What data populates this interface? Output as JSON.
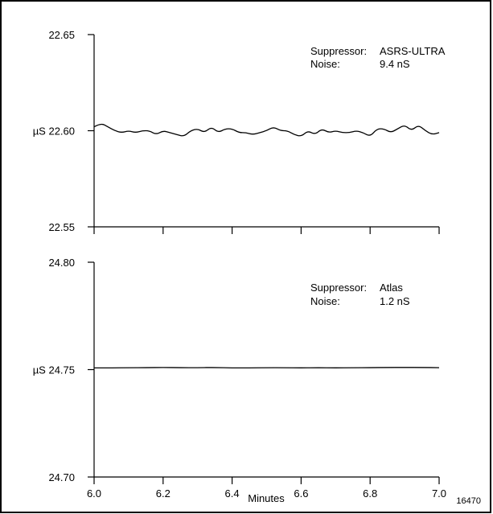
{
  "chart_data": [
    {
      "type": "line",
      "ylabel_prefix": "µS",
      "ylim": [
        22.55,
        22.65
      ],
      "y_ticks": [
        "22.65",
        "22.60",
        "22.55"
      ],
      "xlim": [
        6.0,
        7.0
      ],
      "annotation": {
        "suppressor_label": "Suppressor:",
        "suppressor_value": "ASRS-ULTRA",
        "noise_label": "Noise:",
        "noise_value": "9.4 nS"
      },
      "series": [
        {
          "x": [
            6.0,
            6.02,
            6.04,
            6.06,
            6.08,
            6.1,
            6.12,
            6.14,
            6.16,
            6.18,
            6.2,
            6.22,
            6.24,
            6.26,
            6.28,
            6.3,
            6.32,
            6.34,
            6.36,
            6.38,
            6.4,
            6.42,
            6.44,
            6.46,
            6.48,
            6.5,
            6.52,
            6.54,
            6.56,
            6.58,
            6.6,
            6.62,
            6.64,
            6.66,
            6.68,
            6.7,
            6.72,
            6.74,
            6.76,
            6.78,
            6.8,
            6.82,
            6.84,
            6.86,
            6.88,
            6.9,
            6.92,
            6.94,
            6.96,
            6.98,
            7.0
          ],
          "values": [
            22.602,
            22.604,
            22.602,
            22.6,
            22.599,
            22.6,
            22.599,
            22.6,
            22.6,
            22.598,
            22.6,
            22.599,
            22.598,
            22.597,
            22.6,
            22.601,
            22.599,
            22.602,
            22.599,
            22.601,
            22.601,
            22.599,
            22.599,
            22.598,
            22.599,
            22.6,
            22.602,
            22.6,
            22.6,
            22.598,
            22.597,
            22.6,
            22.598,
            22.601,
            22.599,
            22.6,
            22.599,
            22.599,
            22.6,
            22.599,
            22.597,
            22.601,
            22.601,
            22.599,
            22.601,
            22.603,
            22.6,
            22.603,
            22.6,
            22.598,
            22.599
          ]
        }
      ]
    },
    {
      "type": "line",
      "ylabel_prefix": "µS",
      "ylim": [
        24.7,
        24.8
      ],
      "y_ticks": [
        "24.80",
        "24.75",
        "24.70"
      ],
      "xlim": [
        6.0,
        7.0
      ],
      "x_ticks": [
        "6.0",
        "6.2",
        "6.4",
        "6.6",
        "6.8",
        "7.0"
      ],
      "xlabel": "Minutes",
      "annotation": {
        "suppressor_label": "Suppressor:",
        "suppressor_value": "Atlas",
        "noise_label": "Noise:",
        "noise_value": "1.2 nS"
      },
      "series": [
        {
          "x": [
            6.0,
            6.05,
            6.1,
            6.15,
            6.2,
            6.25,
            6.3,
            6.35,
            6.4,
            6.45,
            6.5,
            6.55,
            6.6,
            6.65,
            6.7,
            6.75,
            6.8,
            6.85,
            6.9,
            6.95,
            7.0
          ],
          "values": [
            24.7508,
            24.7508,
            24.7509,
            24.7509,
            24.751,
            24.7509,
            24.7509,
            24.751,
            24.7508,
            24.7508,
            24.7509,
            24.7509,
            24.7508,
            24.7509,
            24.7508,
            24.7509,
            24.7509,
            24.751,
            24.751,
            24.751,
            24.7509
          ]
        }
      ]
    }
  ],
  "figure_id": "16470"
}
